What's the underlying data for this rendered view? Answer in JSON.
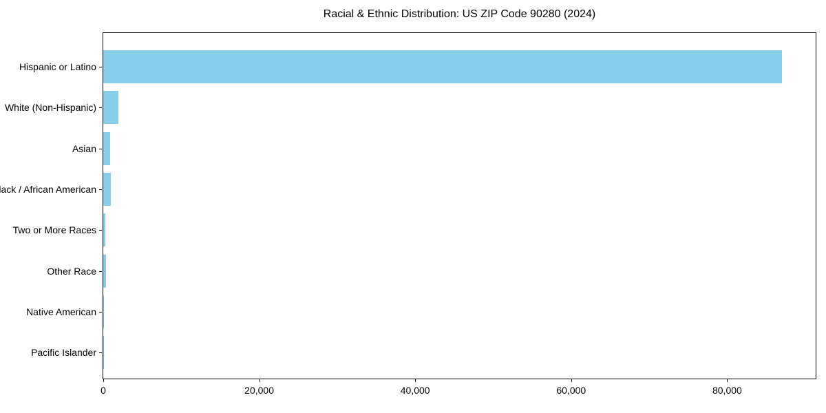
{
  "chart_data": {
    "type": "bar",
    "orientation": "horizontal",
    "title": "Racial & Ethnic Distribution: US ZIP Code 90280 (2024)",
    "categories": [
      "Hispanic or Latino",
      "White (Non-Hispanic)",
      "Asian",
      "Black / African American",
      "Two or More Races",
      "Other Race",
      "Native American",
      "Pacific Islander"
    ],
    "values": [
      87000,
      1900,
      850,
      950,
      300,
      350,
      70,
      25
    ],
    "xlabel": "",
    "ylabel": "",
    "xlim": [
      0,
      91350
    ],
    "xticks": [
      0,
      20000,
      40000,
      60000,
      80000
    ],
    "xtick_labels": [
      "0",
      "20,000",
      "40,000",
      "60,000",
      "80,000"
    ],
    "bar_color": "#87CEEB",
    "background_color": "#ffffff",
    "spine_color": "#000000",
    "grid": false,
    "legend": null
  }
}
